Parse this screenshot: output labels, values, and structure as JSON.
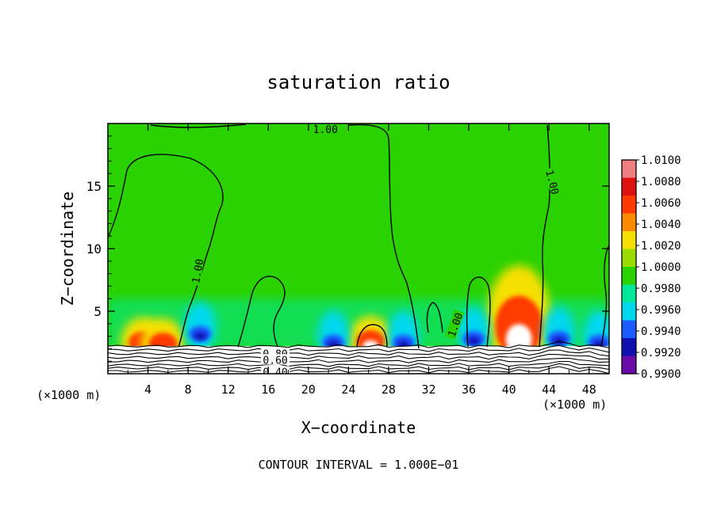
{
  "chart_data": {
    "type": "heatmap",
    "title": "saturation ratio",
    "xlabel": "X−coordinate",
    "ylabel": "Z−coordinate",
    "x_unit_left": "(×1000 m)",
    "x_unit_right": "(×1000 m)",
    "xlim": [
      0,
      50
    ],
    "ylim": [
      0,
      20
    ],
    "x_ticks": [
      4,
      8,
      12,
      16,
      20,
      24,
      28,
      32,
      36,
      40,
      44,
      48
    ],
    "y_ticks": [
      5,
      10,
      15
    ],
    "grid": false,
    "footer": "CONTOUR INTERVAL = 1.000E−01",
    "colorbar": {
      "position": "right",
      "labels": [
        "1.0100",
        "1.0080",
        "1.0060",
        "1.0040",
        "1.0020",
        "1.0000",
        "0.9980",
        "0.9960",
        "0.9940",
        "0.9920",
        "0.9900"
      ],
      "colors": [
        "#f08080",
        "#e01010",
        "#ff3a00",
        "#ff8a00",
        "#f6e000",
        "#9adc00",
        "#2ad200",
        "#00e89a",
        "#00d8f0",
        "#1a5cff",
        "#1010b0",
        "#6a0aa8"
      ]
    },
    "contour_labels": [
      {
        "text": "1.00",
        "x": 1.9,
        "z": 20.0
      },
      {
        "text": "1.00",
        "x": 4.6,
        "z": 8.3
      },
      {
        "text": "1.00",
        "x": 3.7,
        "z": 16.0
      },
      {
        "text": "1.00",
        "x": 3.5,
        "z": 4.1
      },
      {
        "text": "0.80",
        "x": 1.8,
        "z": 1.6
      },
      {
        "text": "0.60",
        "x": 1.8,
        "z": 1.0
      },
      {
        "text": "0.40",
        "x": 1.8,
        "z": 0.3
      }
    ],
    "anomalies": [
      {
        "x": 3.5,
        "z": 2.5,
        "type": "moist",
        "value": 1.007
      },
      {
        "x": 5.5,
        "z": 2.4,
        "type": "moist",
        "value": 1.004
      },
      {
        "x": 26.2,
        "z": 2.6,
        "type": "moist",
        "value": 1.008
      },
      {
        "x": 41.0,
        "z": 3.8,
        "type": "moist",
        "value": 1.01
      },
      {
        "x": 9.2,
        "z": 3.2,
        "type": "dry",
        "value": 0.993
      },
      {
        "x": 22.5,
        "z": 2.5,
        "type": "dry",
        "value": 0.992
      },
      {
        "x": 29.5,
        "z": 2.5,
        "type": "dry",
        "value": 0.993
      },
      {
        "x": 36.5,
        "z": 2.8,
        "type": "dry",
        "value": 0.994
      },
      {
        "x": 45.0,
        "z": 2.8,
        "type": "dry",
        "value": 0.993
      },
      {
        "x": 49.0,
        "z": 2.5,
        "type": "dry",
        "value": 0.994
      }
    ]
  }
}
